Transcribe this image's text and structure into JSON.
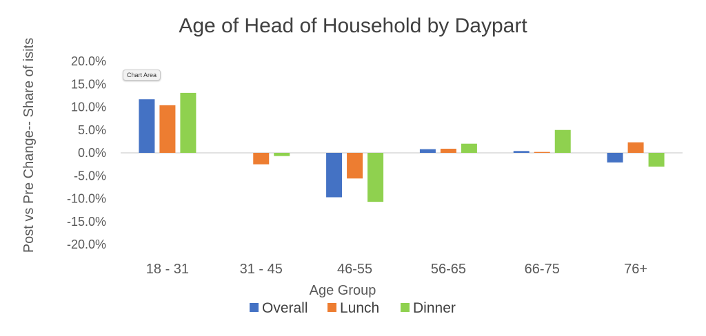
{
  "chart_data": {
    "type": "bar",
    "title": "Age of Head of Household by Daypart",
    "xlabel": "Age Group",
    "ylabel": "Post vs Pre Change-- Share of isits",
    "categories": [
      "18 - 31",
      "31 - 45",
      "46-55",
      "56-65",
      "66-75",
      "76+"
    ],
    "series": [
      {
        "name": "Overall",
        "color": "#4472C4",
        "values": [
          11.7,
          0.0,
          -9.7,
          0.8,
          0.4,
          -2.1
        ]
      },
      {
        "name": "Lunch",
        "color": "#ED7D31",
        "values": [
          10.4,
          -2.5,
          -5.6,
          0.9,
          0.2,
          2.3
        ]
      },
      {
        "name": "Dinner",
        "color": "#8FD14F",
        "values": [
          13.1,
          -0.7,
          -10.7,
          2.0,
          5.0,
          -3.0
        ]
      }
    ],
    "ylim": [
      -20,
      20
    ],
    "yticks": [
      "-20.0%",
      "-15.0%",
      "-10.0%",
      "-5.0%",
      "0.0%",
      "5.0%",
      "10.0%",
      "15.0%",
      "20.0%"
    ],
    "grid": false,
    "legend_position": "bottom"
  },
  "tooltip": {
    "text": "Chart Area"
  }
}
